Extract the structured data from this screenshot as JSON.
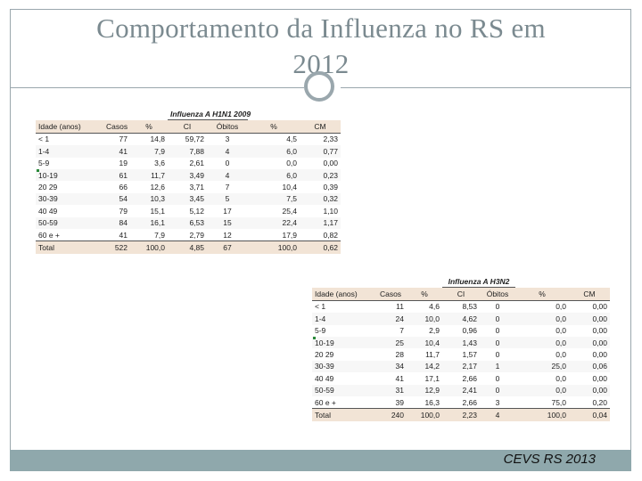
{
  "slide": {
    "title_line1": "Comportamento da Influenza no RS em",
    "title_line2": "2012",
    "footer": "CEVS RS 2013"
  },
  "table1": {
    "group_label": "Influenza A H1N1 2009",
    "headers": [
      "Idade (anos)",
      "Casos",
      "%",
      "CI",
      "Óbitos",
      "%",
      "CM"
    ],
    "rows": [
      [
        "< 1",
        "77",
        "14,8",
        "59,72",
        "3",
        "4,5",
        "2,33"
      ],
      [
        "1-4",
        "41",
        "7,9",
        "7,88",
        "4",
        "6,0",
        "0,77"
      ],
      [
        "5-9",
        "19",
        "3,6",
        "2,61",
        "0",
        "0,0",
        "0,00"
      ],
      [
        "10-19",
        "61",
        "11,7",
        "3,49",
        "4",
        "6,0",
        "0,23"
      ],
      [
        "20 29",
        "66",
        "12,6",
        "3,71",
        "7",
        "10,4",
        "0,39"
      ],
      [
        "30-39",
        "54",
        "10,3",
        "3,45",
        "5",
        "7,5",
        "0,32"
      ],
      [
        "40 49",
        "79",
        "15,1",
        "5,12",
        "17",
        "25,4",
        "1,10"
      ],
      [
        "50-59",
        "84",
        "16,1",
        "6,53",
        "15",
        "22,4",
        "1,17"
      ],
      [
        "60 e +",
        "41",
        "7,9",
        "2,79",
        "12",
        "17,9",
        "0,82"
      ]
    ],
    "total": [
      "Total",
      "522",
      "100,0",
      "4,85",
      "67",
      "100,0",
      "0,62"
    ]
  },
  "table2": {
    "group_label": "Influenza A H3N2",
    "headers": [
      "Idade (anos)",
      "Casos",
      "%",
      "CI",
      "Óbitos",
      "%",
      "CM"
    ],
    "rows": [
      [
        "< 1",
        "11",
        "4,6",
        "8,53",
        "0",
        "0,0",
        "0,00"
      ],
      [
        "1-4",
        "24",
        "10,0",
        "4,62",
        "0",
        "0,0",
        "0,00"
      ],
      [
        "5-9",
        "7",
        "2,9",
        "0,96",
        "0",
        "0,0",
        "0,00"
      ],
      [
        "10-19",
        "25",
        "10,4",
        "1,43",
        "0",
        "0,0",
        "0,00"
      ],
      [
        "20 29",
        "28",
        "11,7",
        "1,57",
        "0",
        "0,0",
        "0,00"
      ],
      [
        "30-39",
        "34",
        "14,2",
        "2,17",
        "1",
        "25,0",
        "0,06"
      ],
      [
        "40 49",
        "41",
        "17,1",
        "2,66",
        "0",
        "0,0",
        "0,00"
      ],
      [
        "50-59",
        "31",
        "12,9",
        "2,41",
        "0",
        "0,0",
        "0,00"
      ],
      [
        "60 e +",
        "39",
        "16,3",
        "2,66",
        "3",
        "75,0",
        "0,20"
      ]
    ],
    "total": [
      "Total",
      "240",
      "100,0",
      "2,23",
      "4",
      "100,0",
      "0,04"
    ]
  }
}
